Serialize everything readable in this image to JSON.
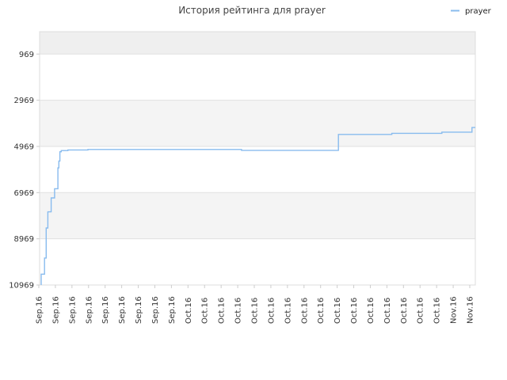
{
  "chart_data": {
    "type": "line",
    "title": "История рейтинга для prayer",
    "xlabel": "",
    "ylabel": "",
    "legend": {
      "position": "top-right"
    },
    "y_inverted": true,
    "ylim": [
      10969,
      0
    ],
    "y_ticks": [
      "969",
      "2969",
      "4969",
      "6969",
      "8969",
      "10969"
    ],
    "band_colors": [
      "#efefef",
      "#ffffff",
      "#f4f4f4",
      "#ffffff",
      "#f4f4f4",
      "#ffffff"
    ],
    "x_ticks": [
      "Sep.16",
      "Sep.16",
      "Sep.16",
      "Sep.16",
      "Sep.16",
      "Sep.16",
      "Sep.16",
      "Sep.16",
      "Sep.16",
      "Oct.16",
      "Oct.16",
      "Oct.16",
      "Oct.16",
      "Oct.16",
      "Oct.16",
      "Oct.16",
      "Oct.16",
      "Oct.16",
      "Oct.16",
      "Oct.16",
      "Oct.16",
      "Oct.16",
      "Oct.16",
      "Oct.16",
      "Oct.16",
      "Nov.16",
      "Nov.16"
    ],
    "series": [
      {
        "name": "prayer",
        "color": "#88bbee",
        "x": [
          0,
          0,
          1,
          1,
          1.5,
          1.5,
          2,
          2,
          3,
          3,
          4,
          4,
          5,
          5,
          5.3,
          5.3,
          5.6,
          5.6,
          6,
          6,
          8,
          8,
          14,
          14,
          32,
          32,
          60,
          60,
          64,
          64,
          89,
          89,
          105,
          105,
          111,
          111,
          120,
          120,
          129,
          129,
          130
        ],
        "y": [
          10969,
          10500,
          10500,
          9800,
          9800,
          8500,
          8500,
          7800,
          7800,
          7200,
          7200,
          6800,
          6800,
          5900,
          5900,
          5600,
          5600,
          5200,
          5200,
          5150,
          5150,
          5120,
          5120,
          5100,
          5100,
          5100,
          5100,
          5140,
          5140,
          5140,
          5140,
          4450,
          4450,
          4400,
          4400,
          4400,
          4400,
          4350,
          4350,
          4150,
          4150
        ]
      }
    ]
  }
}
